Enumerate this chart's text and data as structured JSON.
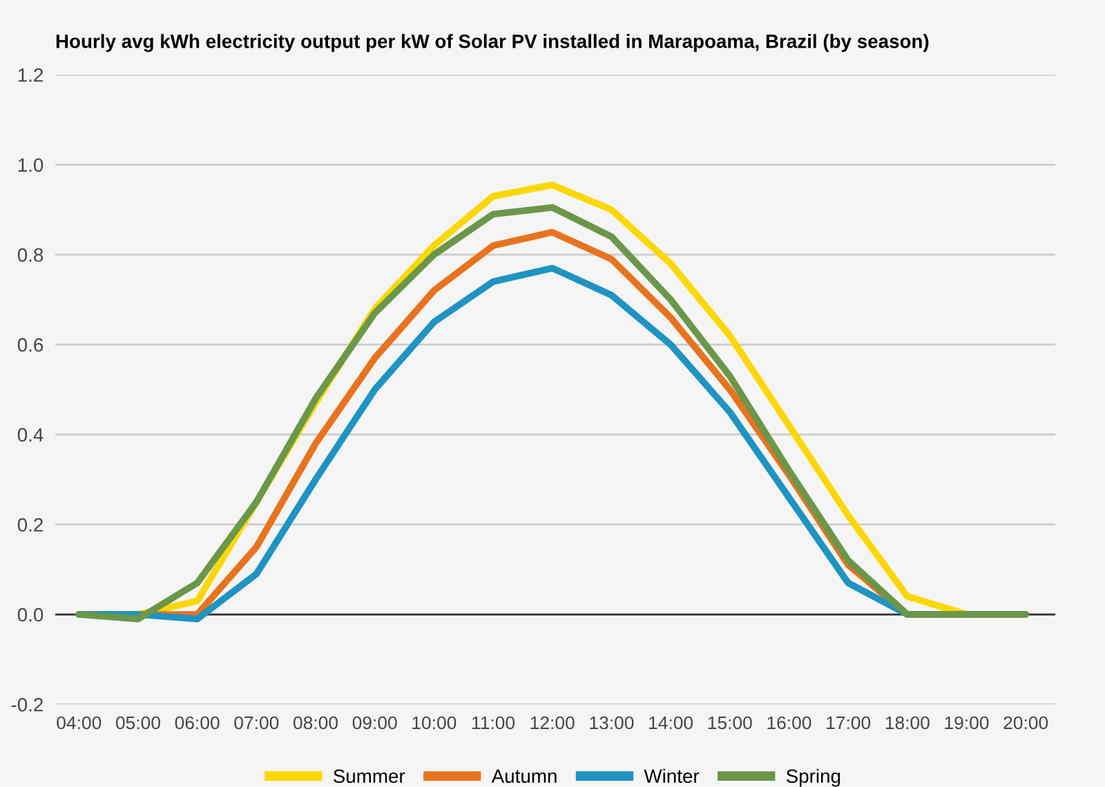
{
  "chart_data": {
    "type": "line",
    "title": "Hourly avg kWh electricity output per kW of Solar PV installed in Marapoama, Brazil (by season)",
    "x": [
      4,
      5,
      6,
      7,
      8,
      9,
      10,
      11,
      12,
      13,
      14,
      15,
      16,
      17,
      18,
      19,
      20
    ],
    "xlim": [
      3.6,
      20.5
    ],
    "xticks": [
      {
        "value": 4,
        "label": "04:00"
      },
      {
        "value": 5,
        "label": "05:00"
      },
      {
        "value": 6,
        "label": "06:00"
      },
      {
        "value": 7,
        "label": "07:00"
      },
      {
        "value": 8,
        "label": "08:00"
      },
      {
        "value": 9,
        "label": "09:00"
      },
      {
        "value": 10,
        "label": "10:00"
      },
      {
        "value": 11,
        "label": "11:00"
      },
      {
        "value": 12,
        "label": "12:00"
      },
      {
        "value": 13,
        "label": "13:00"
      },
      {
        "value": 14,
        "label": "14:00"
      },
      {
        "value": 15,
        "label": "15:00"
      },
      {
        "value": 16,
        "label": "16:00"
      },
      {
        "value": 17,
        "label": "17:00"
      },
      {
        "value": 18,
        "label": "18:00"
      },
      {
        "value": 19,
        "label": "19:00"
      },
      {
        "value": 20,
        "label": "20:00"
      }
    ],
    "ylim": [
      -0.2,
      1.2
    ],
    "yticks": [
      {
        "value": -0.2,
        "label": "-0.2"
      },
      {
        "value": 0,
        "label": "0.0"
      },
      {
        "value": 0.2,
        "label": "0.2"
      },
      {
        "value": 0.4,
        "label": "0.4"
      },
      {
        "value": 0.6,
        "label": "0.6"
      },
      {
        "value": 0.8,
        "label": "0.8"
      },
      {
        "value": 1.0,
        "label": "1.0"
      },
      {
        "value": 1.2,
        "label": "1.2"
      }
    ],
    "grid": "y",
    "legend": "bottom",
    "marker": "none",
    "line_style": "solid",
    "ref_lines": [
      {
        "axis": "y",
        "value": 0,
        "label": null,
        "color": "#333333"
      }
    ],
    "series": [
      {
        "name": "Summer",
        "color": "#fdd700",
        "values": [
          0,
          0,
          0.03,
          0.25,
          0.47,
          0.68,
          0.82,
          0.93,
          0.955,
          0.9,
          0.78,
          0.62,
          0.42,
          0.22,
          0.04,
          0,
          0
        ]
      },
      {
        "name": "Autumn",
        "color": "#e8731f",
        "values": [
          0,
          0,
          0,
          0.15,
          0.38,
          0.57,
          0.72,
          0.82,
          0.85,
          0.79,
          0.66,
          0.5,
          0.31,
          0.11,
          0,
          0,
          0
        ]
      },
      {
        "name": "Winter",
        "color": "#1f93c2",
        "values": [
          0,
          0,
          -0.01,
          0.09,
          0.3,
          0.5,
          0.65,
          0.74,
          0.77,
          0.71,
          0.6,
          0.45,
          0.26,
          0.07,
          0,
          0,
          0
        ]
      },
      {
        "name": "Spring",
        "color": "#6b974a",
        "values": [
          0,
          -0.01,
          0.07,
          0.25,
          0.48,
          0.67,
          0.8,
          0.89,
          0.905,
          0.84,
          0.7,
          0.53,
          0.32,
          0.12,
          0,
          0,
          0
        ]
      }
    ]
  }
}
